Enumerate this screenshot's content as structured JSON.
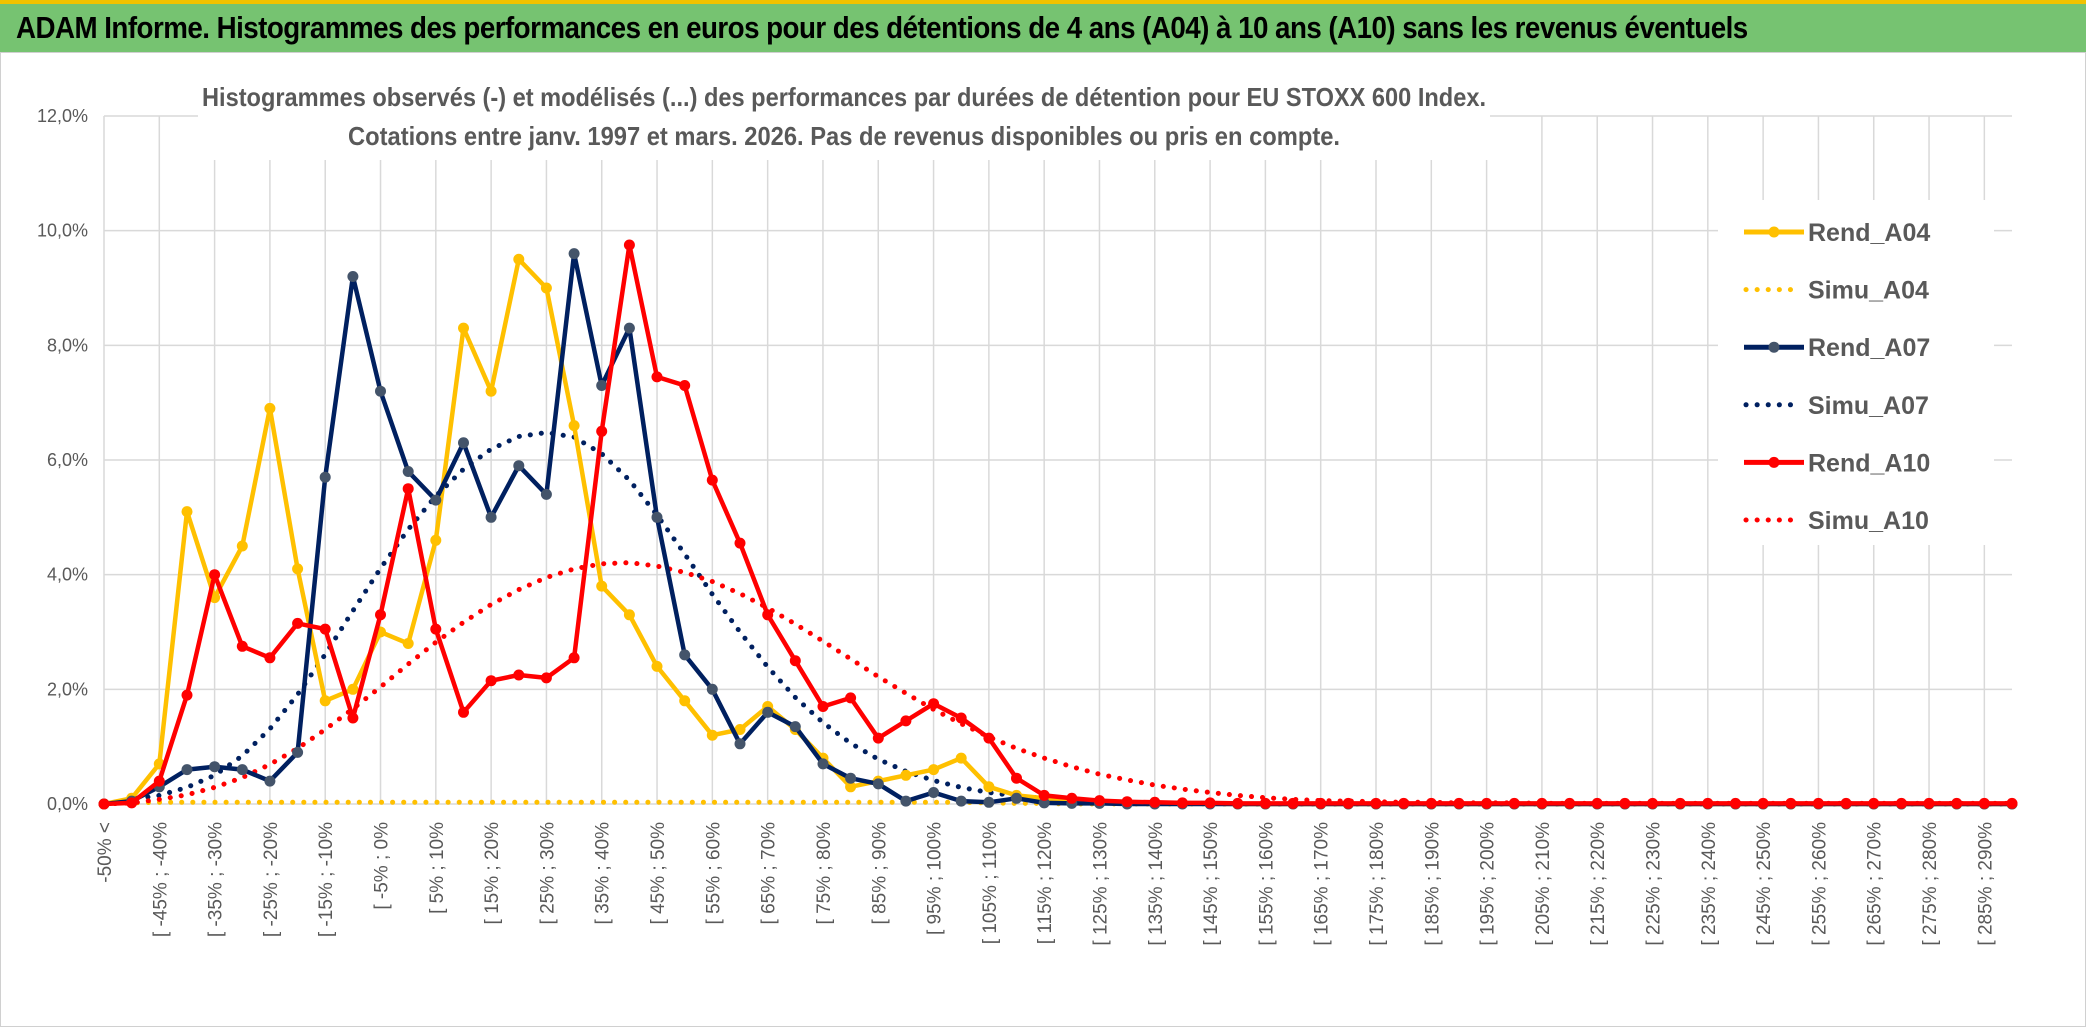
{
  "banner": {
    "title": "ADAM Informe. Histogrammes des performances en euros pour des détentions de 4 ans (A04) à 10 ans (A10) sans les revenus éventuels"
  },
  "chart_data": {
    "type": "line",
    "title_line1": "Histogrammes observés (-) et modélisés (...) des performances par durées de détention pour EU STOXX 600 Index.",
    "title_line2": "Cotations entre janv. 1997 et mars. 2026. Pas de revenus disponibles ou pris en compte.",
    "ylim": [
      0,
      12
    ],
    "yticks": [
      "0,0%",
      "2,0%",
      "4,0%",
      "6,0%",
      "8,0%",
      "10,0%",
      "12,0%"
    ],
    "grid": true,
    "legend_position": "right",
    "x_labels": [
      "-50% <",
      "[ -45% ; -40%",
      "[ -35% ; -30%",
      "[ -25% ; -20%",
      "[ -15% ; -10%",
      "[ -5% ; 0%",
      "[ 5% ; 10%",
      "[ 15% ; 20%",
      "[ 25% ; 30%",
      "[ 35% ; 40%",
      "[ 45% ; 50%",
      "[ 55% ; 60%",
      "[ 65% ; 70%",
      "[ 75% ; 80%",
      "[ 85% ; 90%",
      "[ 95% ; 100%",
      "[ 105% ; 110%",
      "[ 115% ; 120%",
      "[ 125% ; 130%",
      "[ 135% ; 140%",
      "[ 145% ; 150%",
      "[ 155% ; 160%",
      "[ 165% ; 170%",
      "[ 175% ; 180%",
      "[ 185% ; 190%",
      "[ 195% ; 200%",
      "[ 205% ; 210%",
      "[ 215% ; 220%",
      "[ 225% ; 230%",
      "[ 235% ; 240%",
      "[ 245% ; 250%",
      "[ 255% ; 260%",
      "[ 265% ; 270%",
      "[ 275% ; 280%",
      "[ 285% ; 290%"
    ],
    "series": [
      {
        "name": "Rend_A04",
        "style": "solid",
        "color": "#ffc000",
        "marker": "#ffc000",
        "values": [
          0.0,
          0.1,
          0.7,
          5.1,
          3.6,
          4.5,
          6.9,
          4.1,
          1.8,
          2.0,
          3.0,
          2.8,
          4.6,
          8.3,
          7.2,
          9.5,
          9.0,
          6.6,
          3.8,
          3.3,
          2.4,
          1.8,
          1.2,
          1.3,
          1.7,
          1.3,
          0.8,
          0.3,
          0.4,
          0.5,
          0.6,
          0.8,
          0.3,
          0.15,
          0.1,
          0.05,
          0.03,
          0.02,
          0.01,
          0.01,
          0.01,
          0,
          0,
          0,
          0,
          0,
          0,
          0,
          0,
          0,
          0,
          0,
          0,
          0,
          0,
          0,
          0,
          0,
          0,
          0,
          0,
          0,
          0,
          0,
          0,
          0,
          0,
          0,
          0,
          0
        ]
      },
      {
        "name": "Simu_A04",
        "style": "dotted",
        "color": "#ffc000",
        "values": [
          0.0,
          0.02,
          0.03,
          0.03,
          0.03,
          0.03,
          0.03,
          0.03,
          0.03,
          0.03,
          0.03,
          0.03,
          0.03,
          0.03,
          0.03,
          0.03,
          0.03,
          0.03,
          0.03,
          0.03,
          0.03,
          0.03,
          0.03,
          0.03,
          0.03,
          0.03,
          0.03,
          0.03,
          0.03,
          0.03,
          0.03,
          0.03,
          0.02,
          0.01,
          0.01,
          0,
          0,
          0,
          0,
          0,
          0,
          0,
          0,
          0,
          0,
          0,
          0,
          0,
          0,
          0,
          0,
          0,
          0,
          0,
          0,
          0,
          0,
          0,
          0,
          0,
          0,
          0,
          0,
          0,
          0,
          0,
          0,
          0,
          0,
          0
        ]
      },
      {
        "name": "Rend_A07",
        "style": "solid",
        "color": "#002060",
        "marker": "#44546a",
        "values": [
          0.0,
          0.05,
          0.3,
          0.6,
          0.65,
          0.6,
          0.4,
          0.9,
          5.7,
          9.2,
          7.2,
          5.8,
          5.3,
          6.3,
          5.0,
          5.9,
          5.4,
          9.6,
          7.3,
          8.3,
          5.0,
          2.6,
          2.0,
          1.05,
          1.6,
          1.35,
          0.7,
          0.45,
          0.35,
          0.05,
          0.2,
          0.05,
          0.03,
          0.1,
          0.02,
          0.01,
          0.01,
          0,
          0,
          0,
          0,
          0,
          0,
          0,
          0,
          0,
          0,
          0,
          0,
          0,
          0,
          0,
          0,
          0,
          0,
          0,
          0,
          0,
          0,
          0,
          0,
          0,
          0,
          0,
          0,
          0,
          0,
          0,
          0,
          0
        ]
      },
      {
        "name": "Simu_A07",
        "style": "dotted",
        "color": "#002060",
        "values": [
          0.0,
          0.08,
          0.15,
          0.29,
          0.5,
          0.84,
          1.31,
          1.91,
          2.61,
          3.37,
          4.11,
          4.79,
          5.37,
          5.84,
          6.19,
          6.41,
          6.48,
          6.4,
          6.11,
          5.65,
          5.04,
          4.36,
          3.66,
          3.0,
          2.39,
          1.86,
          1.42,
          1.06,
          0.78,
          0.57,
          0.41,
          0.29,
          0.2,
          0.14,
          0.1,
          0.07,
          0.05,
          0.03,
          0.02,
          0.01,
          0.01,
          0,
          0,
          0,
          0,
          0,
          0,
          0,
          0,
          0,
          0,
          0,
          0,
          0,
          0,
          0,
          0,
          0,
          0,
          0,
          0,
          0,
          0,
          0,
          0,
          0,
          0,
          0,
          0,
          0
        ]
      },
      {
        "name": "Rend_A10",
        "style": "solid",
        "color": "#ff0000",
        "marker": "#ff0000",
        "values": [
          0.0,
          0.02,
          0.4,
          1.9,
          4.0,
          2.75,
          2.55,
          3.15,
          3.05,
          1.5,
          3.3,
          5.5,
          3.05,
          1.6,
          2.15,
          2.25,
          2.2,
          2.55,
          6.5,
          9.75,
          7.45,
          7.3,
          5.65,
          4.55,
          3.3,
          2.5,
          1.7,
          1.85,
          1.15,
          1.45,
          1.75,
          1.5,
          1.15,
          0.45,
          0.15,
          0.1,
          0.06,
          0.04,
          0.03,
          0.02,
          0.02,
          0.01,
          0.01,
          0.01,
          0.01,
          0.01,
          0.01,
          0.01,
          0.01,
          0.01,
          0.01,
          0.01,
          0.01,
          0.01,
          0.01,
          0.01,
          0.01,
          0.01,
          0.01,
          0.01,
          0.01,
          0.01,
          0.01,
          0.01,
          0.01,
          0.01,
          0.01,
          0.01,
          0.01,
          0.01
        ]
      },
      {
        "name": "Simu_A10",
        "style": "dotted",
        "color": "#ff0000",
        "values": [
          0.0,
          0.02,
          0.08,
          0.16,
          0.29,
          0.46,
          0.69,
          0.97,
          1.3,
          1.66,
          2.04,
          2.44,
          2.82,
          3.17,
          3.48,
          3.74,
          3.95,
          4.1,
          4.19,
          4.21,
          4.15,
          4.04,
          3.88,
          3.67,
          3.42,
          3.14,
          2.84,
          2.53,
          2.22,
          1.93,
          1.65,
          1.4,
          1.17,
          0.97,
          0.8,
          0.65,
          0.52,
          0.42,
          0.33,
          0.26,
          0.2,
          0.15,
          0.11,
          0.08,
          0.06,
          0.05,
          0.04,
          0.03,
          0.03,
          0.02,
          0.02,
          0.02,
          0.01,
          0.01,
          0.01,
          0.01,
          0.01,
          0.01,
          0.01,
          0.01,
          0.01,
          0.01,
          0.01,
          0.01,
          0.01,
          0.01,
          0.01,
          0.01,
          0.01,
          0.01
        ]
      }
    ]
  }
}
